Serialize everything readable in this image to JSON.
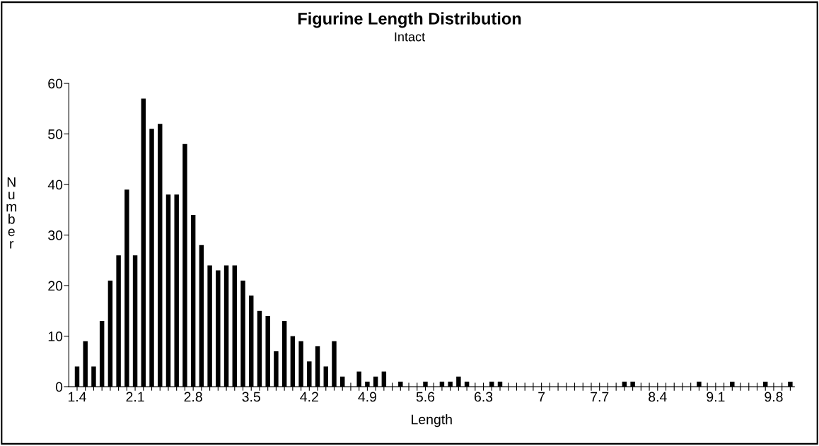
{
  "chart_data": {
    "type": "histogram",
    "title": "Figurine Length Distribution",
    "subtitle": "Intact",
    "xlabel": "Length",
    "ylabel": "Number",
    "color": "#000000",
    "bins": [
      1.35,
      1.45,
      1.55,
      1.65,
      1.75,
      1.85,
      1.95,
      2.05,
      2.15,
      2.25,
      2.35,
      2.45,
      2.55,
      2.65,
      2.75,
      2.85,
      2.95,
      3.05,
      3.15,
      3.25,
      3.35,
      3.45,
      3.55,
      3.65,
      3.75,
      3.85,
      3.95,
      4.05,
      4.15,
      4.25,
      4.35,
      4.45,
      4.55,
      4.65,
      4.75,
      4.85,
      4.95,
      5.05,
      5.15,
      5.25,
      5.35,
      5.45,
      5.55,
      5.65,
      5.75,
      5.85,
      5.95,
      6.05,
      6.15,
      6.25,
      6.35,
      6.45,
      6.55,
      6.65,
      6.75,
      6.85,
      6.95,
      7.05,
      7.15,
      7.25,
      7.35,
      7.45,
      7.55,
      7.65,
      7.75,
      7.85,
      7.95,
      8.05,
      8.15,
      8.25,
      8.35,
      8.45,
      8.55,
      8.65,
      8.75,
      8.85,
      8.95,
      9.05,
      9.15,
      9.25,
      9.35,
      9.45,
      9.55,
      9.65,
      9.75,
      9.85,
      9.95,
      10.05
    ],
    "values": [
      4,
      9,
      4,
      13,
      21,
      26,
      39,
      26,
      57,
      51,
      52,
      38,
      38,
      48,
      34,
      28,
      24,
      23,
      24,
      24,
      21,
      18,
      15,
      14,
      7,
      13,
      10,
      9,
      5,
      8,
      4,
      9,
      2,
      0,
      3,
      1,
      2,
      3,
      0,
      1,
      0,
      0,
      1,
      0,
      1,
      1,
      2,
      1,
      0,
      0,
      1,
      1,
      0,
      0,
      0,
      0,
      0,
      0,
      0,
      0,
      0,
      0,
      0,
      0,
      0,
      0,
      1,
      1,
      0,
      0,
      0,
      0,
      0,
      0,
      0,
      1,
      0,
      0,
      0,
      1,
      0,
      0,
      0,
      1,
      0,
      0,
      1
    ],
    "xlim": [
      1.3,
      10.05
    ],
    "ylim": [
      0,
      60
    ],
    "yticks": [
      0,
      10,
      20,
      30,
      40,
      50,
      60
    ],
    "xticks": [
      1.4,
      {
        "value": 1.5,
        "label": null
      },
      {
        "value": 1.6,
        "label": null
      },
      {
        "value": 1.7,
        "label": null
      },
      {
        "value": 1.8,
        "label": null
      },
      {
        "value": 1.9,
        "label": null
      },
      {
        "value": 2.0,
        "label": null
      },
      2.1,
      {
        "value": 2.2,
        "label": null
      },
      {
        "value": 2.3,
        "label": null
      },
      {
        "value": 2.4,
        "label": null
      },
      {
        "value": 2.5,
        "label": null
      },
      {
        "value": 2.6,
        "label": null
      },
      {
        "value": 2.7,
        "label": null
      },
      2.8,
      {
        "value": 2.9,
        "label": null
      },
      {
        "value": 3.0,
        "label": null
      },
      {
        "value": 3.1,
        "label": null
      },
      {
        "value": 3.2,
        "label": null
      },
      {
        "value": 3.3,
        "label": null
      },
      {
        "value": 3.4,
        "label": null
      },
      3.5,
      {
        "value": 3.6,
        "label": null
      },
      {
        "value": 3.7,
        "label": null
      },
      {
        "value": 3.8,
        "label": null
      },
      {
        "value": 3.9,
        "label": null
      },
      {
        "value": 4.0,
        "label": null
      },
      {
        "value": 4.1,
        "label": null
      },
      4.2,
      {
        "value": 4.3,
        "label": null
      },
      {
        "value": 4.4,
        "label": null
      },
      {
        "value": 4.5,
        "label": null
      },
      {
        "value": 4.6,
        "label": null
      },
      {
        "value": 4.7,
        "label": null
      },
      {
        "value": 4.8,
        "label": null
      },
      4.9,
      {
        "value": 5.0,
        "label": null
      },
      {
        "value": 5.1,
        "label": null
      },
      {
        "value": 5.2,
        "label": null
      },
      {
        "value": 5.3,
        "label": null
      },
      {
        "value": 5.4,
        "label": null
      },
      {
        "value": 5.5,
        "label": null
      },
      5.6,
      {
        "value": 5.7,
        "label": null
      },
      {
        "value": 5.8,
        "label": null
      },
      {
        "value": 5.9,
        "label": null
      },
      {
        "value": 6.0,
        "label": null
      },
      {
        "value": 6.1,
        "label": null
      },
      {
        "value": 6.2,
        "label": null
      },
      6.3,
      {
        "value": 6.4,
        "label": null
      },
      {
        "value": 6.5,
        "label": null
      },
      {
        "value": 6.6,
        "label": null
      },
      {
        "value": 6.7,
        "label": null
      },
      {
        "value": 6.8,
        "label": null
      },
      {
        "value": 6.9,
        "label": null
      },
      7,
      {
        "value": 7.1,
        "label": null
      },
      {
        "value": 7.2,
        "label": null
      },
      {
        "value": 7.3,
        "label": null
      },
      {
        "value": 7.4,
        "label": null
      },
      {
        "value": 7.5,
        "label": null
      },
      {
        "value": 7.6,
        "label": null
      },
      7.7,
      {
        "value": 7.8,
        "label": null
      },
      {
        "value": 7.9,
        "label": null
      },
      {
        "value": 8.0,
        "label": null
      },
      {
        "value": 8.1,
        "label": null
      },
      {
        "value": 8.2,
        "label": null
      },
      {
        "value": 8.3,
        "label": null
      },
      8.4,
      {
        "value": 8.5,
        "label": null
      },
      {
        "value": 8.6,
        "label": null
      },
      {
        "value": 8.7,
        "label": null
      },
      {
        "value": 8.8,
        "label": null
      },
      {
        "value": 8.9,
        "label": null
      },
      {
        "value": 9.0,
        "label": null
      },
      9.1,
      {
        "value": 9.2,
        "label": null
      },
      {
        "value": 9.3,
        "label": null
      },
      {
        "value": 9.4,
        "label": null
      },
      {
        "value": 9.5,
        "label": null
      },
      {
        "value": 9.6,
        "label": null
      },
      {
        "value": 9.7,
        "label": null
      },
      9.8,
      {
        "value": 9.9,
        "label": null
      },
      {
        "value": 10.0,
        "label": null
      }
    ],
    "grid": false,
    "legend": false
  }
}
